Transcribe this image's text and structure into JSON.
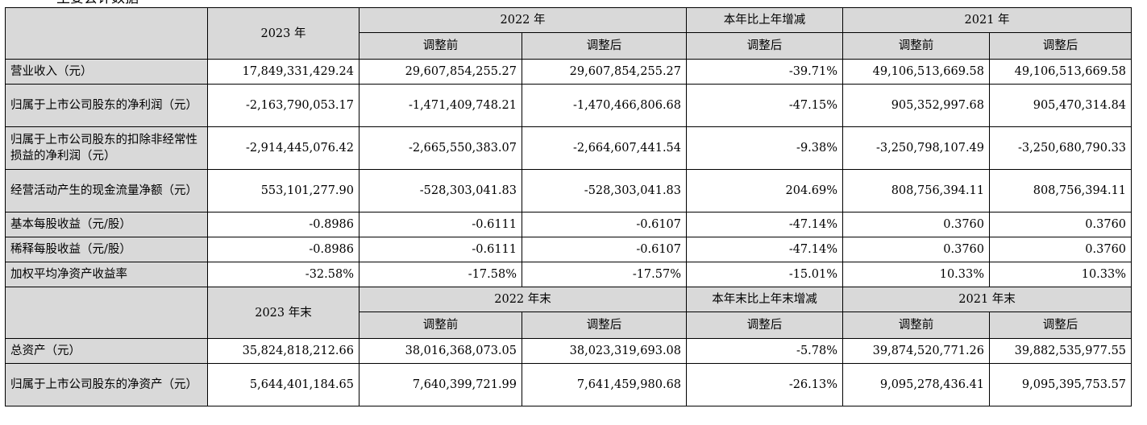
{
  "heading": "主要会计数据",
  "table": {
    "col1_header": "",
    "group1": {
      "year_2023": "2023 年",
      "year_2022": "2022 年",
      "change": "本年比上年增减",
      "year_2021": "2021 年",
      "before": "调整前",
      "after": "调整后",
      "change_sub": "调整后"
    },
    "rows1": [
      {
        "label": "营业收入（元）",
        "v2023": "17,849,331,429.24",
        "v2022_before": "29,607,854,255.27",
        "v2022_after": "29,607,854,255.27",
        "change": "-39.71%",
        "v2021_before": "49,106,513,669.58",
        "v2021_after": "49,106,513,669.58"
      },
      {
        "label": "归属于上市公司股东的净利润（元）",
        "v2023": "-2,163,790,053.17",
        "v2022_before": "-1,471,409,748.21",
        "v2022_after": "-1,470,466,806.68",
        "change": "-47.15%",
        "v2021_before": "905,352,997.68",
        "v2021_after": "905,470,314.84"
      },
      {
        "label": "归属于上市公司股东的扣除非经常性损益的净利润（元）",
        "v2023": "-2,914,445,076.42",
        "v2022_before": "-2,665,550,383.07",
        "v2022_after": "-2,664,607,441.54",
        "change": "-9.38%",
        "v2021_before": "-3,250,798,107.49",
        "v2021_after": "-3,250,680,790.33"
      },
      {
        "label": "经营活动产生的现金流量净额（元）",
        "v2023": "553,101,277.90",
        "v2022_before": "-528,303,041.83",
        "v2022_after": "-528,303,041.83",
        "change": "204.69%",
        "v2021_before": "808,756,394.11",
        "v2021_after": "808,756,394.11"
      },
      {
        "label": "基本每股收益（元/股）",
        "v2023": "-0.8986",
        "v2022_before": "-0.6111",
        "v2022_after": "-0.6107",
        "change": "-47.14%",
        "v2021_before": "0.3760",
        "v2021_after": "0.3760"
      },
      {
        "label": "稀释每股收益（元/股）",
        "v2023": "-0.8986",
        "v2022_before": "-0.6111",
        "v2022_after": "-0.6107",
        "change": "-47.14%",
        "v2021_before": "0.3760",
        "v2021_after": "0.3760"
      },
      {
        "label": "加权平均净资产收益率",
        "v2023": "-32.58%",
        "v2022_before": "-17.58%",
        "v2022_after": "-17.57%",
        "change": "-15.01%",
        "v2021_before": "10.33%",
        "v2021_after": "10.33%"
      }
    ],
    "group2": {
      "year_2023": "2023 年末",
      "year_2022": "2022 年末",
      "change": "本年末比上年末增减",
      "year_2021": "2021 年末",
      "before": "调整前",
      "after": "调整后",
      "change_sub": "调整后"
    },
    "rows2": [
      {
        "label": "总资产（元）",
        "v2023": "35,824,818,212.66",
        "v2022_before": "38,016,368,073.05",
        "v2022_after": "38,023,319,693.08",
        "change": "-5.78%",
        "v2021_before": "39,874,520,771.26",
        "v2021_after": "39,882,535,977.55"
      },
      {
        "label": "归属于上市公司股东的净资产（元）",
        "v2023": "5,644,401,184.65",
        "v2022_before": "7,640,399,721.99",
        "v2022_after": "7,641,459,980.68",
        "change": "-26.13%",
        "v2021_before": "9,095,278,436.41",
        "v2021_after": "9,095,395,753.57"
      }
    ]
  }
}
